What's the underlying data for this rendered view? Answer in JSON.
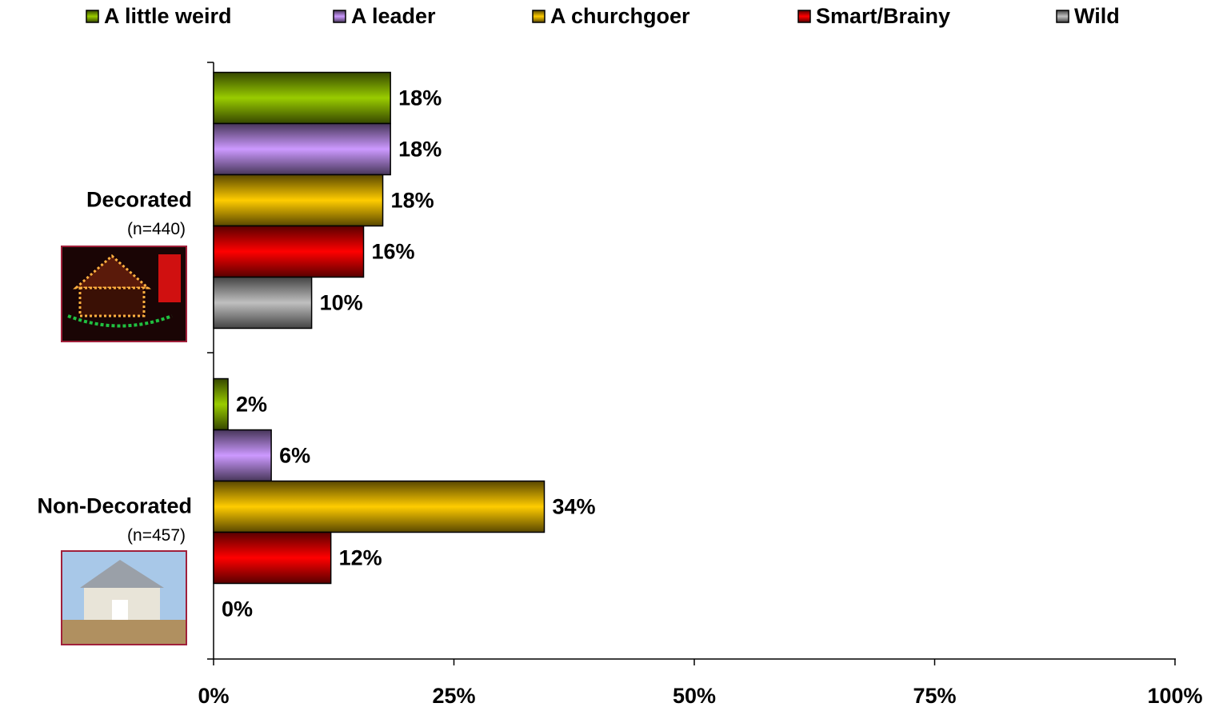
{
  "chart_data": {
    "type": "hbar",
    "categories": [
      "Decorated",
      "Non-Decorated"
    ],
    "category_notes": [
      "(n=440)",
      "(n=457)"
    ],
    "series": [
      {
        "name": "A little weird",
        "color": "#99cc00",
        "values": [
          18.4,
          1.5
        ],
        "value_labels": [
          "18%",
          "2%"
        ]
      },
      {
        "name": "A leader",
        "color": "#cc99ff",
        "values": [
          18.4,
          6.0
        ],
        "value_labels": [
          "18%",
          "6%"
        ]
      },
      {
        "name": "A churchgoer",
        "color": "#ffcc00",
        "values": [
          17.6,
          34.4
        ],
        "value_labels": [
          "18%",
          "34%"
        ]
      },
      {
        "name": "Smart/Brainy",
        "color": "#ff0000",
        "values": [
          15.6,
          12.2
        ],
        "value_labels": [
          "16%",
          "12%"
        ]
      },
      {
        "name": "Wild",
        "color": "#c0c0c0",
        "values": [
          10.2,
          0
        ],
        "value_labels": [
          "10%",
          "0%"
        ]
      }
    ],
    "xlim": [
      0,
      100
    ],
    "xticks": [
      {
        "value": 0,
        "label": "0%"
      },
      {
        "value": 25,
        "label": "25%"
      },
      {
        "value": 50,
        "label": "50%"
      },
      {
        "value": 75,
        "label": "75%"
      },
      {
        "value": 100,
        "label": "100%"
      }
    ],
    "legend": "top"
  }
}
